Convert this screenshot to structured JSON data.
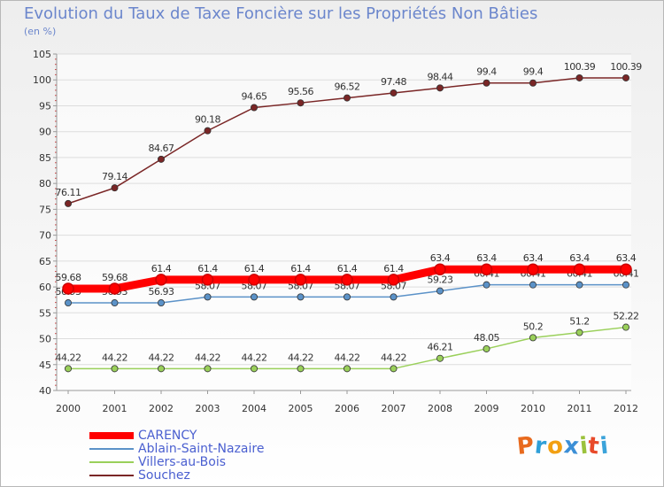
{
  "header": {
    "title": "Evolution du Taux de Taxe Foncière sur les Propriétés Non Bâties",
    "subtitle": "(en %)"
  },
  "logo": {
    "letters": [
      "P",
      "r",
      "o",
      "x",
      "i",
      "t",
      "i"
    ],
    "colors": [
      "#e86a1e",
      "#2f9fd8",
      "#f2a012",
      "#3c8fd6",
      "#9bc23c",
      "#e84a2a",
      "#3ba3da"
    ]
  },
  "chart_data": {
    "type": "line",
    "title": "Evolution du Taux de Taxe Foncière sur les Propriétés Non Bâties",
    "ylabel": "(en %)",
    "categories": [
      "2000",
      "2001",
      "2002",
      "2003",
      "2004",
      "2005",
      "2006",
      "2007",
      "2008",
      "2009",
      "2010",
      "2011",
      "2012"
    ],
    "ylim": [
      40,
      105
    ],
    "yticks": [
      40,
      45,
      50,
      55,
      60,
      65,
      70,
      75,
      80,
      85,
      90,
      95,
      100,
      105
    ],
    "grid": "horizontal",
    "legend_position": "bottom-left",
    "series": [
      {
        "name": "CARENCY",
        "color": "#ff0000",
        "values": [
          59.68,
          59.68,
          61.4,
          61.4,
          61.4,
          61.4,
          61.4,
          61.4,
          63.4,
          63.4,
          63.4,
          63.4,
          63.4
        ],
        "labels": [
          "59.68",
          "59.68",
          "61.4",
          "61.4",
          "61.4",
          "61.4",
          "61.4",
          "61.4",
          "63.4",
          "63.4",
          "63.4",
          "63.4",
          "63.4"
        ]
      },
      {
        "name": "Ablain-Saint-Nazaire",
        "color": "#5b92c8",
        "values": [
          56.93,
          56.93,
          56.93,
          58.07,
          58.07,
          58.07,
          58.07,
          58.07,
          59.23,
          60.41,
          60.41,
          60.41,
          60.41
        ],
        "labels": [
          "56.93",
          "56.93",
          "56.93",
          "58.07",
          "58.07",
          "58.07",
          "58.07",
          "58.07",
          "59.23",
          "60.41",
          "60.41",
          "60.41",
          "60.41"
        ]
      },
      {
        "name": "Villers-au-Bois",
        "color": "#9ad05a",
        "values": [
          44.22,
          44.22,
          44.22,
          44.22,
          44.22,
          44.22,
          44.22,
          44.22,
          46.21,
          48.05,
          50.2,
          51.2,
          52.22
        ],
        "labels": [
          "44.22",
          "44.22",
          "44.22",
          "44.22",
          "44.22",
          "44.22",
          "44.22",
          "44.22",
          "46.21",
          "48.05",
          "50.2",
          "51.2",
          "52.22"
        ]
      },
      {
        "name": "Souchez",
        "color": "#7a2626",
        "values": [
          76.11,
          79.14,
          84.67,
          90.18,
          94.65,
          95.56,
          96.52,
          97.48,
          98.44,
          99.4,
          99.4,
          100.39,
          100.39
        ],
        "labels": [
          "76.11",
          "79.14",
          "84.67",
          "90.18",
          "94.65",
          "95.56",
          "96.52",
          "97.48",
          "98.44",
          "99.4",
          "99.4",
          "100.39",
          "100.39"
        ]
      }
    ]
  }
}
